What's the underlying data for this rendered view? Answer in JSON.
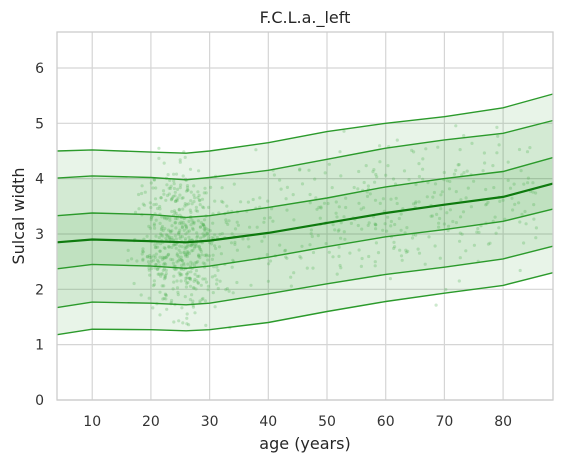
{
  "chart_data": {
    "type": "line",
    "title": "F.C.L.a._left",
    "xlabel": "age (years)",
    "ylabel": "Sulcal width",
    "xlim": [
      4,
      88.5
    ],
    "ylim": [
      0,
      6.65
    ],
    "xticks": [
      10,
      20,
      30,
      40,
      50,
      60,
      70,
      80
    ],
    "yticks": [
      0,
      1,
      2,
      3,
      4,
      5,
      6
    ],
    "grid": true,
    "colors": {
      "line": "#2b9a2b",
      "median": "#0e7a0e",
      "band": "#2e9e2e",
      "scatter": "#4caf50",
      "grid": "#d5d5d5",
      "background": "#ffffff"
    },
    "x": [
      4,
      10,
      20,
      26,
      30,
      40,
      50,
      60,
      70,
      80,
      88.5
    ],
    "series": [
      {
        "values": [
          1.18,
          1.28,
          1.27,
          1.25,
          1.27,
          1.4,
          1.6,
          1.78,
          1.93,
          2.07,
          2.3
        ]
      },
      {
        "values": [
          1.67,
          1.77,
          1.75,
          1.72,
          1.75,
          1.92,
          2.1,
          2.27,
          2.4,
          2.55,
          2.78
        ]
      },
      {
        "values": [
          2.37,
          2.45,
          2.42,
          2.38,
          2.42,
          2.58,
          2.77,
          2.95,
          3.08,
          3.23,
          3.45
        ]
      },
      {
        "values": [
          2.85,
          2.9,
          2.87,
          2.85,
          2.88,
          3.02,
          3.2,
          3.38,
          3.53,
          3.67,
          3.91
        ]
      },
      {
        "values": [
          3.33,
          3.38,
          3.35,
          3.3,
          3.33,
          3.48,
          3.65,
          3.85,
          4.0,
          4.13,
          4.38
        ]
      },
      {
        "values": [
          4.01,
          4.05,
          4.02,
          3.98,
          4.02,
          4.15,
          4.35,
          4.55,
          4.7,
          4.82,
          5.05
        ]
      },
      {
        "values": [
          4.5,
          4.52,
          4.48,
          4.46,
          4.5,
          4.65,
          4.85,
          5.0,
          5.12,
          5.28,
          5.53
        ]
      }
    ]
  }
}
